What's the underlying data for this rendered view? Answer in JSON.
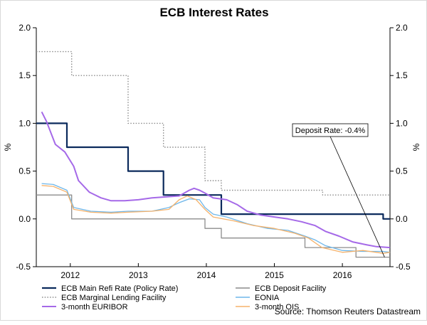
{
  "chart_data": {
    "type": "line",
    "title": "ECB Interest Rates",
    "ylabel_left": "%",
    "ylabel_right": "%",
    "ylim": [
      -0.5,
      2.0
    ],
    "xlim": [
      2011.5,
      2016.7
    ],
    "y_ticks": [
      "2.0",
      "1.5",
      "1.0",
      "0.5",
      "0.0",
      "-0.5"
    ],
    "y_tick_values": [
      2.0,
      1.5,
      1.0,
      0.5,
      0.0,
      -0.5
    ],
    "x_ticks": [
      "2012",
      "2013",
      "2014",
      "2015",
      "2016"
    ],
    "x_tick_values": [
      2012.0,
      2013.0,
      2014.0,
      2015.0,
      2016.0
    ],
    "grid": false,
    "legend_position": "bottom",
    "source": "Source: Thomson Reuters Datastream",
    "annotation": {
      "text": "Deposit Rate: -0.4%",
      "point": [
        2016.62,
        -0.4
      ]
    },
    "series": [
      {
        "name": "ECB Main Refi Rate (Policy Rate)",
        "color": "#0b2a5c",
        "style": "solid",
        "width": 2.2,
        "points": [
          [
            2011.5,
            1.0
          ],
          [
            2011.95,
            1.0
          ],
          [
            2011.95,
            0.75
          ],
          [
            2012.85,
            0.75
          ],
          [
            2012.85,
            0.5
          ],
          [
            2013.37,
            0.5
          ],
          [
            2013.37,
            0.25
          ],
          [
            2013.98,
            0.25
          ],
          [
            2013.98,
            0.25
          ],
          [
            2014.22,
            0.25
          ],
          [
            2014.22,
            0.05
          ],
          [
            2015.71,
            0.05
          ],
          [
            2015.71,
            0.05
          ],
          [
            2016.6,
            0.05
          ],
          [
            2016.6,
            0.0
          ],
          [
            2016.7,
            0.0
          ]
        ]
      },
      {
        "name": "ECB Deposit Facility",
        "color": "#8c8c8c",
        "style": "solid",
        "width": 1.3,
        "points": [
          [
            2011.5,
            0.25
          ],
          [
            2012.02,
            0.25
          ],
          [
            2012.02,
            0.0
          ],
          [
            2013.98,
            0.0
          ],
          [
            2013.98,
            -0.1
          ],
          [
            2014.22,
            -0.1
          ],
          [
            2014.22,
            -0.2
          ],
          [
            2015.45,
            -0.2
          ],
          [
            2015.45,
            -0.3
          ],
          [
            2016.2,
            -0.3
          ],
          [
            2016.2,
            -0.4
          ],
          [
            2016.7,
            -0.4
          ]
        ]
      },
      {
        "name": "ECB Marginal Lending Facility",
        "color": "#8c8c8c",
        "style": "dotted",
        "width": 1.4,
        "points": [
          [
            2011.5,
            1.75
          ],
          [
            2012.02,
            1.75
          ],
          [
            2012.02,
            1.5
          ],
          [
            2012.85,
            1.5
          ],
          [
            2012.85,
            1.0
          ],
          [
            2013.37,
            1.0
          ],
          [
            2013.37,
            0.75
          ],
          [
            2013.98,
            0.75
          ],
          [
            2013.98,
            0.4
          ],
          [
            2014.22,
            0.4
          ],
          [
            2014.22,
            0.3
          ],
          [
            2015.71,
            0.3
          ],
          [
            2015.71,
            0.25
          ],
          [
            2016.7,
            0.25
          ]
        ]
      },
      {
        "name": "EONIA",
        "color": "#6fb7ea",
        "style": "solid",
        "width": 1.3,
        "points": [
          [
            2011.58,
            0.37
          ],
          [
            2011.75,
            0.36
          ],
          [
            2011.95,
            0.3
          ],
          [
            2012.05,
            0.12
          ],
          [
            2012.3,
            0.08
          ],
          [
            2012.6,
            0.07
          ],
          [
            2012.85,
            0.08
          ],
          [
            2013.2,
            0.08
          ],
          [
            2013.45,
            0.12
          ],
          [
            2013.6,
            0.17
          ],
          [
            2013.75,
            0.21
          ],
          [
            2013.9,
            0.2
          ],
          [
            2013.98,
            0.12
          ],
          [
            2014.1,
            0.05
          ],
          [
            2014.3,
            0.02
          ],
          [
            2014.6,
            -0.05
          ],
          [
            2014.9,
            -0.1
          ],
          [
            2015.2,
            -0.12
          ],
          [
            2015.45,
            -0.18
          ],
          [
            2015.6,
            -0.22
          ],
          [
            2015.75,
            -0.28
          ],
          [
            2016.0,
            -0.33
          ],
          [
            2016.3,
            -0.34
          ],
          [
            2016.6,
            -0.34
          ],
          [
            2016.7,
            -0.35
          ]
        ]
      },
      {
        "name": "3-month OIS",
        "color": "#f5b26b",
        "style": "solid",
        "width": 1.3,
        "points": [
          [
            2011.58,
            0.35
          ],
          [
            2011.75,
            0.34
          ],
          [
            2011.95,
            0.28
          ],
          [
            2012.05,
            0.1
          ],
          [
            2012.3,
            0.07
          ],
          [
            2012.6,
            0.06
          ],
          [
            2012.85,
            0.07
          ],
          [
            2013.2,
            0.08
          ],
          [
            2013.45,
            0.1
          ],
          [
            2013.6,
            0.2
          ],
          [
            2013.72,
            0.24
          ],
          [
            2013.85,
            0.2
          ],
          [
            2013.98,
            0.1
          ],
          [
            2014.1,
            0.02
          ],
          [
            2014.4,
            -0.02
          ],
          [
            2014.7,
            -0.07
          ],
          [
            2015.0,
            -0.1
          ],
          [
            2015.3,
            -0.15
          ],
          [
            2015.5,
            -0.2
          ],
          [
            2015.7,
            -0.3
          ],
          [
            2016.0,
            -0.35
          ],
          [
            2016.3,
            -0.33
          ],
          [
            2016.6,
            -0.36
          ],
          [
            2016.7,
            -0.35
          ]
        ]
      },
      {
        "name": "3-month EURIBOR",
        "color": "#a569e8",
        "style": "solid",
        "width": 2.0,
        "points": [
          [
            2011.58,
            1.12
          ],
          [
            2011.65,
            1.02
          ],
          [
            2011.78,
            0.78
          ],
          [
            2011.92,
            0.7
          ],
          [
            2012.05,
            0.55
          ],
          [
            2012.12,
            0.4
          ],
          [
            2012.28,
            0.28
          ],
          [
            2012.45,
            0.22
          ],
          [
            2012.6,
            0.19
          ],
          [
            2012.8,
            0.19
          ],
          [
            2013.0,
            0.2
          ],
          [
            2013.2,
            0.22
          ],
          [
            2013.4,
            0.23
          ],
          [
            2013.6,
            0.24
          ],
          [
            2013.75,
            0.3
          ],
          [
            2013.82,
            0.32
          ],
          [
            2013.9,
            0.3
          ],
          [
            2013.98,
            0.27
          ],
          [
            2014.1,
            0.22
          ],
          [
            2014.3,
            0.2
          ],
          [
            2014.45,
            0.15
          ],
          [
            2014.6,
            0.08
          ],
          [
            2014.8,
            0.04
          ],
          [
            2015.0,
            0.02
          ],
          [
            2015.2,
            0.0
          ],
          [
            2015.4,
            -0.03
          ],
          [
            2015.6,
            -0.07
          ],
          [
            2015.75,
            -0.13
          ],
          [
            2015.95,
            -0.18
          ],
          [
            2016.15,
            -0.24
          ],
          [
            2016.35,
            -0.27
          ],
          [
            2016.5,
            -0.29
          ],
          [
            2016.7,
            -0.3
          ]
        ]
      }
    ]
  }
}
